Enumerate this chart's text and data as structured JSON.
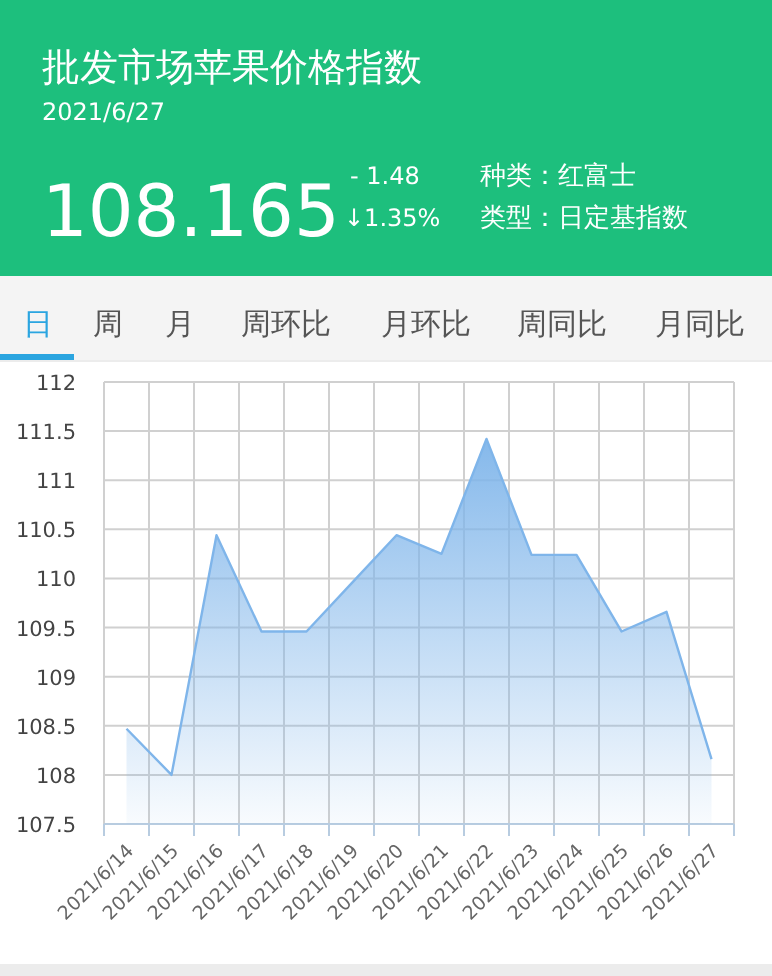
{
  "chart_data": {
    "type": "area",
    "title": "批发市场苹果价格指数",
    "subtitle": "2021/6/27",
    "annotations": [
      "108.165",
      "- 1.48",
      "↓1.35%",
      "种类：红富士",
      "类型：日定基指数",
      "日",
      "周",
      "月",
      "周环比",
      "月环比",
      "周同比",
      "月同比"
    ],
    "categories": [
      "2021/6/14",
      "2021/6/15",
      "2021/6/16",
      "2021/6/17",
      "2021/6/18",
      "2021/6/19",
      "2021/6/20",
      "2021/6/21",
      "2021/6/22",
      "2021/6/23",
      "2021/6/24",
      "2021/6/25",
      "2021/6/26",
      "2021/6/27"
    ],
    "series": [
      {
        "color": "#7fb5ea",
        "values": [
          108.47,
          108.0,
          110.44,
          109.46,
          109.46,
          109.95,
          110.44,
          110.25,
          111.42,
          110.24,
          110.24,
          109.46,
          109.66,
          108.16
        ]
      }
    ],
    "ylim": [
      107.5,
      112
    ],
    "yticks": [
      107.5,
      108,
      108.5,
      109,
      109.5,
      110,
      110.5,
      111,
      111.5,
      112
    ],
    "grid": true,
    "marker": "none"
  }
}
